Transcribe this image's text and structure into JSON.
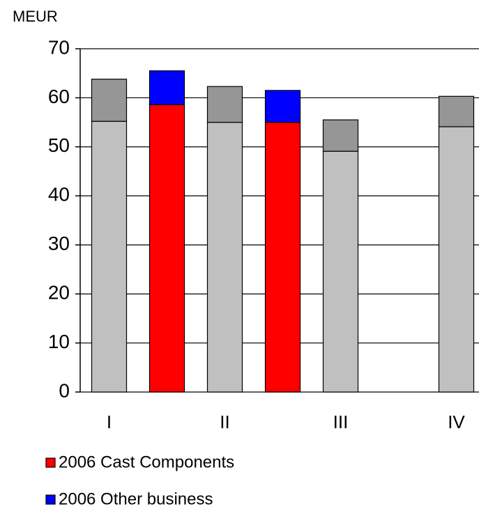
{
  "chart_data": {
    "type": "stacked_bar",
    "y_label": "MEUR",
    "categories": [
      "I",
      null,
      "II",
      null,
      "III",
      null,
      "IV",
      null
    ],
    "series": [
      {
        "color": "#c0c0c0",
        "values": [
          55.2,
          null,
          55.0,
          null,
          49.1,
          null,
          54.1,
          null
        ]
      },
      {
        "color": "#969696",
        "values": [
          8.6,
          null,
          7.3,
          null,
          6.4,
          null,
          6.2,
          null
        ]
      },
      {
        "name": "2006 Cast Components",
        "color": "#ff0000",
        "values": [
          null,
          58.6,
          null,
          55.0,
          null,
          null,
          null,
          null
        ]
      },
      {
        "name": "2006 Other business",
        "color": "#0000ff",
        "values": [
          null,
          6.9,
          null,
          6.5,
          null,
          null,
          null,
          null
        ]
      }
    ],
    "ylim": [
      0,
      70
    ],
    "yticks": [
      0,
      10,
      20,
      30,
      40,
      50,
      60,
      70
    ],
    "grid": true
  }
}
